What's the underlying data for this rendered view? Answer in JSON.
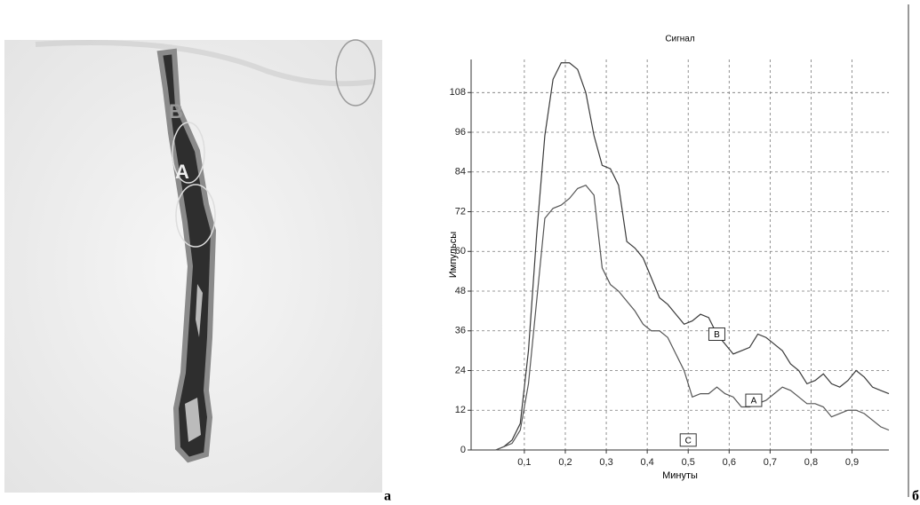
{
  "figure": {
    "image_labels": [
      "B",
      "A"
    ],
    "left_caption": "а",
    "right_caption": "б"
  },
  "chart_data": {
    "type": "line",
    "title": "Сигнал",
    "x_label": "Минуты",
    "y_label": "Импульсы",
    "x": [
      0.03,
      0.05,
      0.07,
      0.09,
      0.11,
      0.13,
      0.15,
      0.17,
      0.19,
      0.21,
      0.23,
      0.25,
      0.27,
      0.29,
      0.31,
      0.33,
      0.35,
      0.37,
      0.39,
      0.41,
      0.43,
      0.45,
      0.47,
      0.49,
      0.51,
      0.53,
      0.55,
      0.57,
      0.59,
      0.61,
      0.63,
      0.65,
      0.67,
      0.69,
      0.71,
      0.73,
      0.75,
      0.77,
      0.79,
      0.81,
      0.83,
      0.85,
      0.87,
      0.89,
      0.91,
      0.93,
      0.95,
      0.97,
      0.99
    ],
    "series": [
      {
        "name": "B",
        "color": "#3a3a3a",
        "values": [
          0,
          1,
          3,
          8,
          30,
          65,
          95,
          112,
          117,
          117,
          115,
          108,
          95,
          86,
          85,
          80,
          63,
          61,
          58,
          52,
          46,
          44,
          41,
          38,
          39,
          41,
          40,
          35,
          32,
          29,
          30,
          31,
          35,
          34,
          32,
          30,
          26,
          24,
          20,
          21,
          23,
          20,
          19,
          21,
          24,
          22,
          19,
          18,
          17
        ]
      },
      {
        "name": "A",
        "color": "#555555",
        "values": [
          0,
          1,
          2,
          6,
          20,
          45,
          70,
          73,
          74,
          76,
          79,
          80,
          77,
          55,
          50,
          48,
          45,
          42,
          38,
          36,
          36,
          34,
          29,
          24,
          16,
          17,
          17,
          19,
          17,
          16,
          13,
          13,
          14,
          15,
          17,
          19,
          18,
          16,
          14,
          14,
          13,
          10,
          11,
          12,
          12,
          11,
          9,
          7,
          6
        ]
      }
    ],
    "annotations": [
      {
        "text": "B",
        "x": 0.57,
        "y": 35
      },
      {
        "text": "A",
        "x": 0.66,
        "y": 15
      },
      {
        "text": "C",
        "x": 0.5,
        "y": 3
      }
    ],
    "xlim": [
      -0.03,
      0.99
    ],
    "ylim": [
      0,
      118
    ],
    "xticks": [
      {
        "value": 0.1,
        "label": "0,1"
      },
      {
        "value": 0.2,
        "label": "0,2"
      },
      {
        "value": 0.3,
        "label": "0,3"
      },
      {
        "value": 0.4,
        "label": "0,4"
      },
      {
        "value": 0.5,
        "label": "0,5"
      },
      {
        "value": 0.6,
        "label": "0,6"
      },
      {
        "value": 0.7,
        "label": "0,7"
      },
      {
        "value": 0.8,
        "label": "0,8"
      },
      {
        "value": 0.9,
        "label": "0,9"
      }
    ],
    "yticks": [
      0,
      12,
      24,
      36,
      48,
      60,
      72,
      84,
      96,
      108
    ],
    "grid": true
  }
}
